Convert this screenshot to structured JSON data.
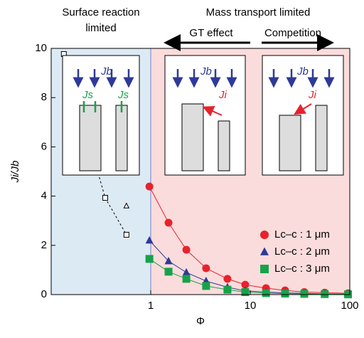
{
  "chart_data": {
    "type": "line",
    "x_label": "Φ",
    "y_label": "Ji/Jb",
    "log_x": true,
    "xlim": [
      0.1,
      100
    ],
    "xticks": [
      1,
      10,
      100
    ],
    "ylim": [
      0,
      10
    ],
    "yticks": [
      0,
      2,
      4,
      6,
      8,
      10
    ],
    "regions": [
      {
        "label": "Surface reaction limited",
        "color": "#dceaf4"
      },
      {
        "label": "Mass transport limited",
        "color": "#fbdcdc"
      }
    ],
    "annotations": [
      "GT effect",
      "Competition",
      "Jb",
      "Js",
      "Js",
      "Jb",
      "Ji",
      "Jb",
      "Ji"
    ],
    "series": [
      {
        "name": "Lc–c : 1 μm",
        "color": "#e8222c",
        "marker": "circle",
        "x": [
          0.97,
          1.51,
          2.28,
          3.6,
          5.9,
          8.9,
          14.4,
          22.4,
          34.9,
          56,
          96
        ],
        "values": [
          4.39,
          2.92,
          1.82,
          1.07,
          0.64,
          0.4,
          0.26,
          0.17,
          0.1,
          0.08,
          0.05
        ]
      },
      {
        "name": "Lc–c : 2 μm",
        "color": "#2e3a97",
        "marker": "triangle",
        "x": [
          0.97,
          1.51,
          2.28,
          3.6,
          5.9,
          8.9,
          14.4,
          22.4,
          34.9,
          56,
          96
        ],
        "values": [
          2.2,
          1.36,
          0.9,
          0.55,
          0.3,
          0.15,
          0.1,
          0.07,
          0.05,
          0.03,
          0.02
        ]
      },
      {
        "name": "Lc–c : 3 μm",
        "color": "#17a24a",
        "marker": "square",
        "x": [
          0.97,
          1.51,
          2.28,
          3.6,
          5.9,
          8.9,
          14.4,
          22.4,
          34.9,
          56,
          96
        ],
        "values": [
          1.45,
          0.93,
          0.64,
          0.35,
          0.2,
          0.1,
          0.06,
          0.04,
          0.03,
          0.02,
          0.01
        ]
      }
    ],
    "open_series": [
      {
        "color": "#000000",
        "marker": "square",
        "x": [
          0.134,
          0.349,
          0.57
        ],
        "values": [
          9.77,
          3.93,
          2.43
        ]
      },
      {
        "color": "#000000",
        "marker": "triangle",
        "x": [
          0.57
        ],
        "values": [
          3.6
        ]
      }
    ]
  }
}
